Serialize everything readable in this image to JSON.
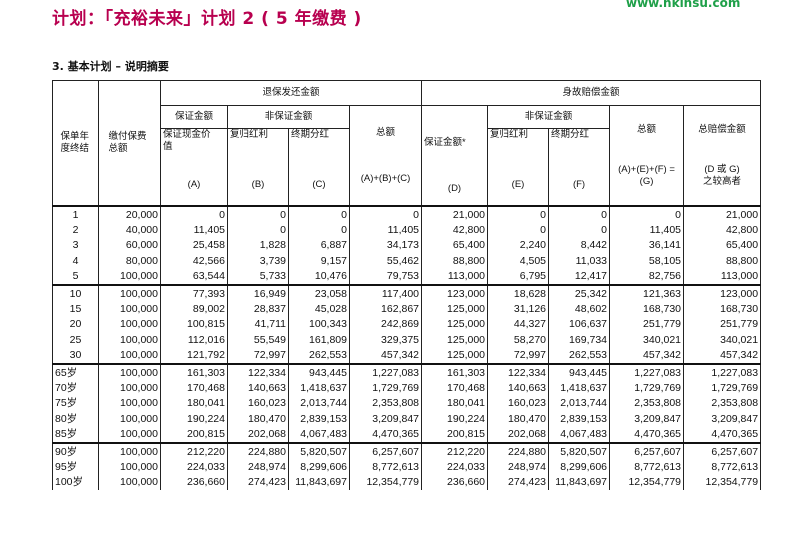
{
  "title": "计划：「充裕未来」计划 2 ( 5 年缴费 )",
  "site": "www.hkinsu.com",
  "section": "3.  基本计划 – 说明摘要",
  "headers": {
    "year": "保单年度终结",
    "premium": "缴付保费总额",
    "surrender": "退保发还金额",
    "death": "身故赔偿金额",
    "guaranteed": "保证金额",
    "nonguaranteed": "非保证金额",
    "cash_value": "保证现金价值",
    "reversionary": "复归红利",
    "terminal": "终期分红",
    "total": "总额",
    "death_guaranteed": "保证金额*",
    "death_reversionary": "复归红利",
    "death_terminal": "终期分红",
    "death_total": "总额",
    "max_death": "总赔偿金额",
    "tag_a": "(A)",
    "tag_b": "(B)",
    "tag_c": "(C)",
    "tag_abc": "(A)+(B)+(C)",
    "tag_d": "(D)",
    "tag_e": "(E)",
    "tag_f": "(F)",
    "tag_aef": "(A)+(E)+(F) =",
    "tag_g": "(G)",
    "tag_dg1": "(D 或 G)",
    "tag_dg2": "之较高者"
  },
  "rows": [
    [
      "1",
      "20,000",
      "0",
      "0",
      "0",
      "0",
      "21,000",
      "0",
      "0",
      "0",
      "21,000"
    ],
    [
      "2",
      "40,000",
      "11,405",
      "0",
      "0",
      "11,405",
      "42,800",
      "0",
      "0",
      "11,405",
      "42,800"
    ],
    [
      "3",
      "60,000",
      "25,458",
      "1,828",
      "6,887",
      "34,173",
      "65,400",
      "2,240",
      "8,442",
      "36,141",
      "65,400"
    ],
    [
      "4",
      "80,000",
      "42,566",
      "3,739",
      "9,157",
      "55,462",
      "88,800",
      "4,505",
      "11,033",
      "58,105",
      "88,800"
    ],
    [
      "5",
      "100,000",
      "63,544",
      "5,733",
      "10,476",
      "79,753",
      "113,000",
      "6,795",
      "12,417",
      "82,756",
      "113,000"
    ],
    [
      "10",
      "100,000",
      "77,393",
      "16,949",
      "23,058",
      "117,400",
      "123,000",
      "18,628",
      "25,342",
      "121,363",
      "123,000"
    ],
    [
      "15",
      "100,000",
      "89,002",
      "28,837",
      "45,028",
      "162,867",
      "125,000",
      "31,126",
      "48,602",
      "168,730",
      "168,730"
    ],
    [
      "20",
      "100,000",
      "100,815",
      "41,711",
      "100,343",
      "242,869",
      "125,000",
      "44,327",
      "106,637",
      "251,779",
      "251,779"
    ],
    [
      "25",
      "100,000",
      "112,016",
      "55,549",
      "161,809",
      "329,375",
      "125,000",
      "58,270",
      "169,734",
      "340,021",
      "340,021"
    ],
    [
      "30",
      "100,000",
      "121,792",
      "72,997",
      "262,553",
      "457,342",
      "125,000",
      "72,997",
      "262,553",
      "457,342",
      "457,342"
    ],
    [
      "65岁",
      "100,000",
      "161,303",
      "122,334",
      "943,445",
      "1,227,083",
      "161,303",
      "122,334",
      "943,445",
      "1,227,083",
      "1,227,083"
    ],
    [
      "70岁",
      "100,000",
      "170,468",
      "140,663",
      "1,418,637",
      "1,729,769",
      "170,468",
      "140,663",
      "1,418,637",
      "1,729,769",
      "1,729,769"
    ],
    [
      "75岁",
      "100,000",
      "180,041",
      "160,023",
      "2,013,744",
      "2,353,808",
      "180,041",
      "160,023",
      "2,013,744",
      "2,353,808",
      "2,353,808"
    ],
    [
      "80岁",
      "100,000",
      "190,224",
      "180,470",
      "2,839,153",
      "3,209,847",
      "190,224",
      "180,470",
      "2,839,153",
      "3,209,847",
      "3,209,847"
    ],
    [
      "85岁",
      "100,000",
      "200,815",
      "202,068",
      "4,067,483",
      "4,470,365",
      "200,815",
      "202,068",
      "4,067,483",
      "4,470,365",
      "4,470,365"
    ],
    [
      "90岁",
      "100,000",
      "212,220",
      "224,880",
      "5,820,507",
      "6,257,607",
      "212,220",
      "224,880",
      "5,820,507",
      "6,257,607",
      "6,257,607"
    ],
    [
      "95岁",
      "100,000",
      "224,033",
      "248,974",
      "8,299,606",
      "8,772,613",
      "224,033",
      "248,974",
      "8,299,606",
      "8,772,613",
      "8,772,613"
    ],
    [
      "100岁",
      "100,000",
      "236,660",
      "274,423",
      "11,843,697",
      "12,354,779",
      "236,660",
      "274,423",
      "11,843,697",
      "12,354,779",
      "12,354,779"
    ]
  ]
}
